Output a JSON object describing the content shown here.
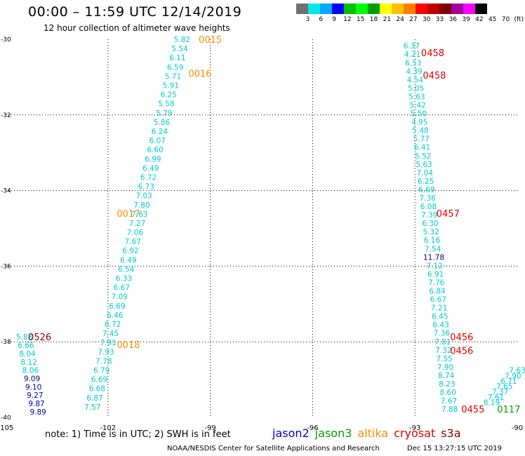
{
  "header": {
    "title": "00:00 – 11:59 UTC 12/14/2019",
    "subtitle": "12 hour collection of altimeter wave heights"
  },
  "color_scale": {
    "colors": [
      "#707070",
      "#00e8e8",
      "#00a8ff",
      "#0000ff",
      "#00c000",
      "#00ff00",
      "#00a000",
      "#ffff00",
      "#ffc000",
      "#ff8000",
      "#ff0000",
      "#c00000",
      "#800000",
      "#a000a0",
      "#ff00ff",
      "#000000"
    ],
    "labels": [
      "3",
      "6",
      "9",
      "12",
      "15",
      "18",
      "21",
      "24",
      "27",
      "30",
      "33",
      "36",
      "39",
      "42",
      "45",
      "70",
      "(ft)"
    ]
  },
  "map": {
    "lon_range": [
      -105,
      -90
    ],
    "lat_range": [
      -40,
      -30
    ],
    "lon_ticks": [
      "-105",
      "-102",
      "-99",
      "-96",
      "-93",
      "-90"
    ],
    "lat_ticks": [
      "-30",
      "-32",
      "-34",
      "-36",
      "-38",
      "-40"
    ],
    "grid_lines": "dotted",
    "colors": {
      "jason2": "#0000cc",
      "jason3": "#00a000",
      "altika": "#ff8c00",
      "cryosat": "#e00000",
      "s3a": "#800000",
      "swh_cyan": "#00cccc",
      "swh_blue": "#000099",
      "swh_green": "#008000"
    }
  },
  "tracks": [
    {
      "id": "track-west",
      "time_color": "altika",
      "times": [
        {
          "text": "0015",
          "lon": -99.0,
          "lat": -30.0
        },
        {
          "text": "0016",
          "lon": -99.3,
          "lat": -30.9
        },
        {
          "text": "0017",
          "lon": -101.4,
          "lat": -34.6
        },
        {
          "text": "0018",
          "lon": -101.4,
          "lat": -38.07
        }
      ],
      "lon_top": -99.83,
      "lat_top": -30.0,
      "lon_bottom": -102.45,
      "lat_bottom": -39.72,
      "labels": [
        {
          "v": "5.82",
          "c": "swh_cyan"
        },
        {
          "v": "5.54",
          "c": "swh_cyan"
        },
        {
          "v": "6.11",
          "c": "swh_cyan"
        },
        {
          "v": "6.59",
          "c": "swh_cyan"
        },
        {
          "v": "5.71",
          "c": "swh_cyan"
        },
        {
          "v": "5.91",
          "c": "swh_cyan"
        },
        {
          "v": "6.25",
          "c": "swh_cyan"
        },
        {
          "v": "5.58",
          "c": "swh_cyan"
        },
        {
          "v": "5.79",
          "c": "swh_cyan"
        },
        {
          "v": "5.86",
          "c": "swh_cyan"
        },
        {
          "v": "6.24",
          "c": "swh_cyan"
        },
        {
          "v": "6.07",
          "c": "swh_cyan"
        },
        {
          "v": "6.60",
          "c": "swh_cyan"
        },
        {
          "v": "6.99",
          "c": "swh_cyan"
        },
        {
          "v": "6.49",
          "c": "swh_cyan"
        },
        {
          "v": "6.72",
          "c": "swh_cyan"
        },
        {
          "v": "6.73",
          "c": "swh_cyan"
        },
        {
          "v": "7.03",
          "c": "swh_cyan"
        },
        {
          "v": "7.80",
          "c": "swh_cyan"
        },
        {
          "v": "7.63",
          "c": "swh_cyan"
        },
        {
          "v": "7.27",
          "c": "swh_cyan"
        },
        {
          "v": "7.06",
          "c": "swh_cyan"
        },
        {
          "v": "7.67",
          "c": "swh_cyan"
        },
        {
          "v": "6.92",
          "c": "swh_cyan"
        },
        {
          "v": "6.49",
          "c": "swh_cyan"
        },
        {
          "v": "6.54",
          "c": "swh_cyan"
        },
        {
          "v": "6.33",
          "c": "swh_cyan"
        },
        {
          "v": "6.67",
          "c": "swh_cyan"
        },
        {
          "v": "7.09",
          "c": "swh_cyan"
        },
        {
          "v": "6.69",
          "c": "swh_cyan"
        },
        {
          "v": "6.46",
          "c": "swh_cyan"
        },
        {
          "v": "6.72",
          "c": "swh_cyan"
        },
        {
          "v": "7.45",
          "c": "swh_cyan"
        },
        {
          "v": "7.91",
          "c": "swh_cyan"
        },
        {
          "v": "7.93",
          "c": "swh_cyan"
        },
        {
          "v": "7.78",
          "c": "swh_cyan"
        },
        {
          "v": "6.79",
          "c": "swh_cyan"
        },
        {
          "v": "6.69",
          "c": "swh_cyan"
        },
        {
          "v": "6.68",
          "c": "swh_cyan"
        },
        {
          "v": "6.87",
          "c": "swh_cyan"
        },
        {
          "v": "7.57",
          "c": "swh_cyan"
        }
      ]
    },
    {
      "id": "track-east",
      "time_color": "cryosat",
      "times": [
        {
          "text": "0458",
          "lon": -92.48,
          "lat": -30.35
        },
        {
          "text": "0458",
          "lon": -92.43,
          "lat": -30.95
        },
        {
          "text": "0457",
          "lon": -92.03,
          "lat": -34.6
        },
        {
          "text": "0456",
          "lon": -91.63,
          "lat": -37.87
        },
        {
          "text": "0456",
          "lon": -91.63,
          "lat": -38.23
        },
        {
          "text": "0455",
          "lon": -91.3,
          "lat": -39.78
        }
      ],
      "lon_top": -93.1,
      "lat_top": -30.17,
      "lon_bottom": -91.98,
      "lat_bottom": -39.78,
      "labels": [
        {
          "v": "6.37",
          "c": "swh_cyan"
        },
        {
          "v": "4.21",
          "c": "swh_cyan"
        },
        {
          "v": "6.53",
          "c": "swh_cyan"
        },
        {
          "v": "4.39",
          "c": "swh_cyan"
        },
        {
          "v": "4.54",
          "c": "swh_cyan"
        },
        {
          "v": "5.05",
          "c": "swh_cyan"
        },
        {
          "v": "5.63",
          "c": "swh_cyan"
        },
        {
          "v": "5.42",
          "c": "swh_cyan"
        },
        {
          "v": "5.50",
          "c": "swh_cyan"
        },
        {
          "v": "4.95",
          "c": "swh_cyan"
        },
        {
          "v": "5.48",
          "c": "swh_cyan"
        },
        {
          "v": "5.77",
          "c": "swh_cyan"
        },
        {
          "v": "6.41",
          "c": "swh_cyan"
        },
        {
          "v": "5.52",
          "c": "swh_cyan"
        },
        {
          "v": "5.63",
          "c": "swh_cyan"
        },
        {
          "v": "7.04",
          "c": "swh_cyan"
        },
        {
          "v": "6.25",
          "c": "swh_cyan"
        },
        {
          "v": "6.69",
          "c": "swh_cyan"
        },
        {
          "v": "7.36",
          "c": "swh_cyan"
        },
        {
          "v": "6.08",
          "c": "swh_cyan"
        },
        {
          "v": "7.39",
          "c": "swh_cyan"
        },
        {
          "v": "6.30",
          "c": "swh_cyan"
        },
        {
          "v": "5.32",
          "c": "swh_cyan"
        },
        {
          "v": "6.16",
          "c": "swh_cyan"
        },
        {
          "v": "7.54",
          "c": "swh_cyan"
        },
        {
          "v": "11.78",
          "c": "swh_blue"
        },
        {
          "v": "7.12",
          "c": "swh_cyan"
        },
        {
          "v": "6.91",
          "c": "swh_cyan"
        },
        {
          "v": "7.76",
          "c": "swh_cyan"
        },
        {
          "v": "6.84",
          "c": "swh_cyan"
        },
        {
          "v": "6.67",
          "c": "swh_cyan"
        },
        {
          "v": "7.21",
          "c": "swh_cyan"
        },
        {
          "v": "6.45",
          "c": "swh_cyan"
        },
        {
          "v": "6.43",
          "c": "swh_cyan"
        },
        {
          "v": "7.36",
          "c": "swh_cyan"
        },
        {
          "v": "7.81",
          "c": "swh_cyan"
        },
        {
          "v": "7.32",
          "c": "swh_cyan"
        },
        {
          "v": "7.55",
          "c": "swh_cyan"
        },
        {
          "v": "7.90",
          "c": "swh_cyan"
        },
        {
          "v": "8.74",
          "c": "swh_cyan"
        },
        {
          "v": "8.23",
          "c": "swh_cyan"
        },
        {
          "v": "8.60",
          "c": "swh_cyan"
        },
        {
          "v": "7.67",
          "c": "swh_cyan"
        },
        {
          "v": "7.88",
          "c": "swh_cyan"
        }
      ]
    },
    {
      "id": "track-far-west",
      "time_color": "s3a",
      "times": [
        {
          "text": "0526",
          "lon": -104.0,
          "lat": -37.87
        }
      ],
      "lon_top": -104.45,
      "lat_top": -37.87,
      "lon_bottom": -104.05,
      "lat_bottom": -39.85,
      "labels": [
        {
          "v": "5.88",
          "c": "swh_cyan"
        },
        {
          "v": "6.66",
          "c": "swh_cyan"
        },
        {
          "v": "8.04",
          "c": "swh_cyan"
        },
        {
          "v": "8.12",
          "c": "swh_cyan"
        },
        {
          "v": "8.06",
          "c": "swh_cyan"
        },
        {
          "v": "9.09",
          "c": "swh_blue"
        },
        {
          "v": "9.10",
          "c": "swh_blue"
        },
        {
          "v": "9.27",
          "c": "swh_blue"
        },
        {
          "v": "9.87",
          "c": "swh_blue"
        },
        {
          "v": "9.89",
          "c": "swh_blue"
        }
      ]
    },
    {
      "id": "track-se",
      "time_color": "jason3",
      "times": [
        {
          "text": "0117",
          "lon": -90.25,
          "lat": -39.78
        }
      ],
      "lon_top": -90.0,
      "lat_top": -38.75,
      "lon_bottom": -90.75,
      "lat_bottom": -39.6,
      "labels": [
        {
          "v": "7.63",
          "c": "swh_cyan"
        },
        {
          "v": "7.90",
          "c": "swh_cyan"
        },
        {
          "v": "6.71",
          "c": "swh_cyan"
        },
        {
          "v": "7.65",
          "c": "swh_cyan"
        },
        {
          "v": "7.37",
          "c": "swh_cyan"
        },
        {
          "v": "7.61",
          "c": "swh_cyan"
        },
        {
          "v": "8.19",
          "c": "swh_cyan"
        }
      ]
    }
  ],
  "footer": {
    "note": "note: 1) Time is in UTC; 2) SWH is in feet",
    "legend": [
      {
        "name": "jason2",
        "color": "#0000cc"
      },
      {
        "name": "jason3",
        "color": "#00a000"
      },
      {
        "name": "altika",
        "color": "#ff8c00"
      },
      {
        "name": "cryosat",
        "color": "#e00000"
      },
      {
        "name": "s3a",
        "color": "#800000"
      }
    ],
    "credit": "NOAA/NESDIS Center for Satellite Applications and Research",
    "generated": "Dec 15 13:27:15 UTC 2019"
  }
}
